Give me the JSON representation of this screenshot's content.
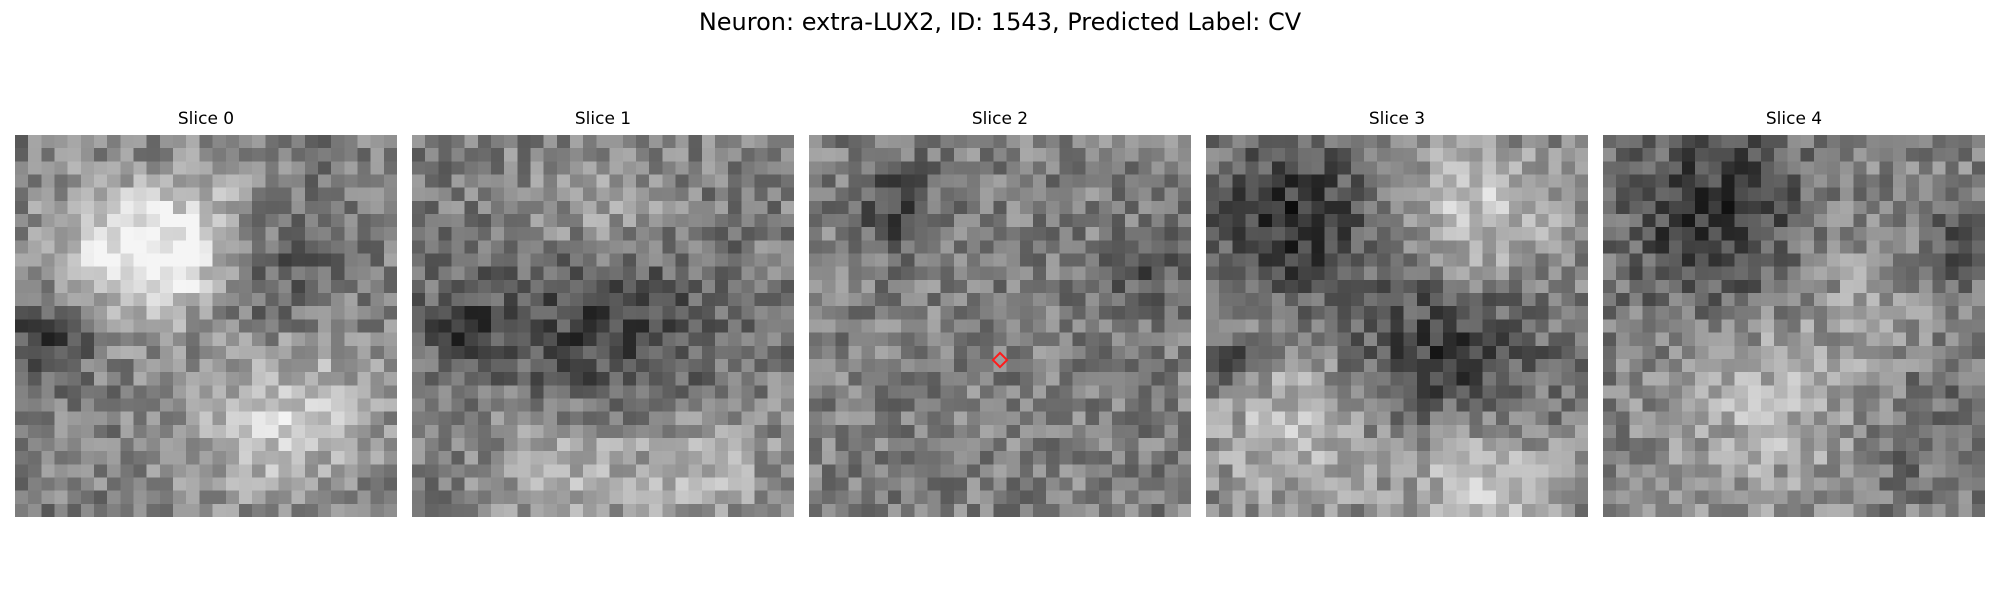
{
  "title": "Neuron: extra-LUX2, ID: 1543, Predicted Label: CV",
  "marker_color": "#ff1a1a",
  "slices": [
    {
      "label": "Slice 0",
      "seed": 11,
      "marker": false
    },
    {
      "label": "Slice 1",
      "seed": 23,
      "marker": false
    },
    {
      "label": "Slice 2",
      "seed": 37,
      "marker": true
    },
    {
      "label": "Slice 3",
      "seed": 41,
      "marker": false
    },
    {
      "label": "Slice 4",
      "seed": 59,
      "marker": false
    }
  ]
}
